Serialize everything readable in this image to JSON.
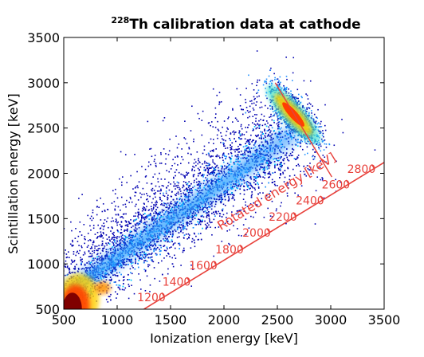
{
  "chart_data": {
    "type": "heatmap",
    "title_superscript": "228",
    "title": "Th calibration data at cathode",
    "xlabel": "Ionization energy [keV]",
    "ylabel": "Scintillation energy [keV]",
    "xlim": [
      500,
      3500
    ],
    "ylim": [
      500,
      3500
    ],
    "xticks": [
      500,
      1000,
      1500,
      2000,
      2500,
      3000,
      3500
    ],
    "yticks": [
      500,
      1000,
      1500,
      2000,
      2500,
      3000,
      3500
    ],
    "grid": false,
    "colormap": "jet",
    "density_features": [
      {
        "name": "diagonal band",
        "from": [
          550,
          700
        ],
        "to": [
          2600,
          2400
        ]
      },
      {
        "name": "low-energy cluster",
        "x": 580,
        "y": 700
      },
      {
        "name": "peak",
        "x": 2650,
        "y": 2650
      }
    ],
    "rotated_axis": {
      "label": "Rotated energy [keV]",
      "color": "#e8403a",
      "line_start": [
        1250,
        500
      ],
      "line_end": [
        3500,
        2120
      ],
      "ticks": [
        {
          "label": "1200",
          "x": 1440,
          "y": 640
        },
        {
          "label": "1400",
          "x": 1680,
          "y": 800
        },
        {
          "label": "1600",
          "x": 1940,
          "y": 960
        },
        {
          "label": "1800",
          "x": 2190,
          "y": 1130
        },
        {
          "label": "2000",
          "x": 2450,
          "y": 1300
        },
        {
          "label": "2200",
          "x": 2700,
          "y": 1470
        },
        {
          "label": "2400",
          "x": 2960,
          "y": 1640
        },
        {
          "label": "2600",
          "x": 3210,
          "y": 1800
        },
        {
          "label": "2800",
          "x": 3450,
          "y": 1970
        }
      ],
      "cut_line": {
        "from": [
          2480,
          3000
        ],
        "to": [
          3010,
          1960
        ]
      }
    },
    "colors": {
      "low": "#0000b0",
      "mid": "#1e90ff",
      "high": "#ff4000",
      "max": "#800000"
    }
  }
}
